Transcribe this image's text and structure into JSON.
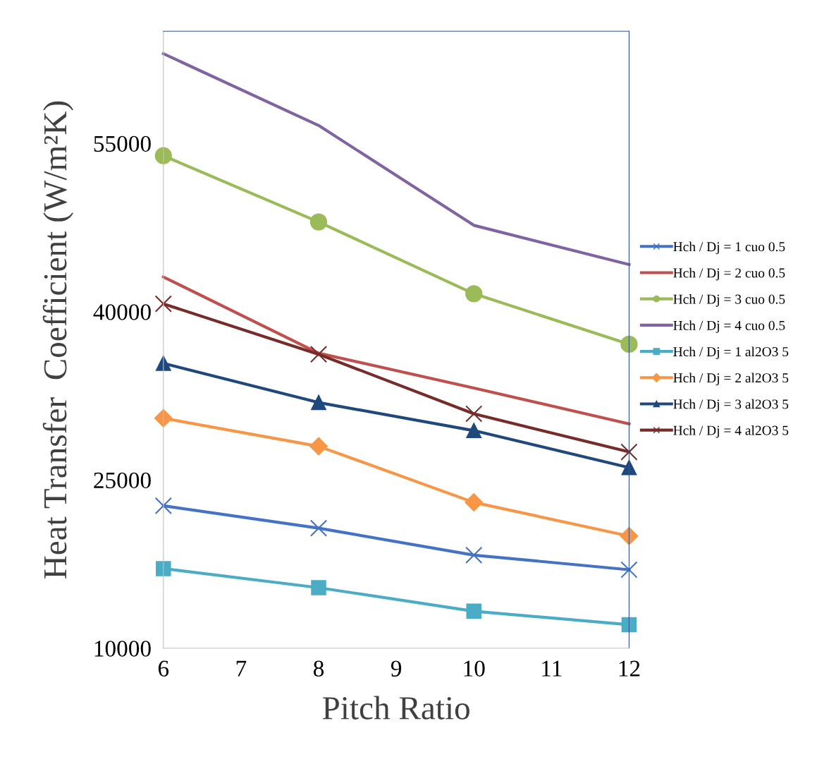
{
  "chart_data": {
    "type": "line",
    "xlabel": "Pitch Ratio",
    "ylabel": "Heat Transfer  Coefficient (W/m²K)",
    "x": [
      6,
      8,
      10,
      12
    ],
    "xlim": [
      6,
      12
    ],
    "xticks": [
      6,
      7,
      8,
      9,
      10,
      11,
      12
    ],
    "ylim": [
      10000,
      65000
    ],
    "yticks": [
      10000,
      25000,
      40000,
      55000
    ],
    "grid": false,
    "legend": "right",
    "series": [
      {
        "name": "Hch / Dj = 1 cuo 0.5",
        "color": "#4472c4",
        "marker": "cross",
        "values": [
          22700,
          20700,
          18300,
          17000
        ]
      },
      {
        "name": "Hch / Dj = 2 cuo 0.5",
        "color": "#c0504d",
        "marker": "none",
        "values": [
          43100,
          36300,
          33200,
          30000
        ]
      },
      {
        "name": "Hch / Dj = 3 cuo 0.5",
        "color": "#9bbb59",
        "marker": "circle",
        "values": [
          53900,
          48000,
          41600,
          37100
        ]
      },
      {
        "name": "Hch / Dj = 4 cuo 0.5",
        "color": "#8064a2",
        "marker": "none",
        "values": [
          63000,
          56600,
          47700,
          44200
        ]
      },
      {
        "name": "Hch / Dj = 1 al2O3 5",
        "color": "#4bacc6",
        "marker": "square",
        "values": [
          17100,
          15400,
          13300,
          12100
        ]
      },
      {
        "name": "Hch / Dj = 2 al2O3 5",
        "color": "#f79646",
        "marker": "diamond",
        "values": [
          30500,
          28000,
          23000,
          20000
        ]
      },
      {
        "name": "Hch / Dj = 3 al2O3 5",
        "color": "#1f497d",
        "marker": "triangle",
        "values": [
          35400,
          31900,
          29400,
          26100
        ]
      },
      {
        "name": "Hch / Dj = 4 al2O3 5",
        "color": "#772c2a",
        "marker": "cross",
        "values": [
          40700,
          36200,
          30900,
          27500
        ]
      }
    ]
  }
}
